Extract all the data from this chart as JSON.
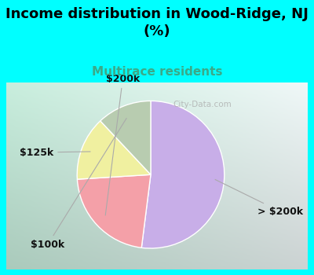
{
  "title": "Income distribution in Wood-Ridge, NJ\n(%)",
  "subtitle": "Multirace residents",
  "title_color": "#000000",
  "subtitle_color": "#3aaa88",
  "background_cyan": "#00ffff",
  "slices": [
    {
      "label": "> $200k",
      "value": 52,
      "color": "#c8aee8"
    },
    {
      "label": "$200k",
      "value": 22,
      "color": "#f4a0a8"
    },
    {
      "label": "$125k",
      "value": 14,
      "color": "#f0f0a0"
    },
    {
      "label": "$100k",
      "value": 12,
      "color": "#b8ccb0"
    }
  ],
  "startangle": 90,
  "label_fontsize": 9,
  "title_fontsize": 13,
  "subtitle_fontsize": 11,
  "watermark": "City-Data.com",
  "chart_bg_left": "#c8eedd",
  "chart_bg_right": "#e8f8f0"
}
